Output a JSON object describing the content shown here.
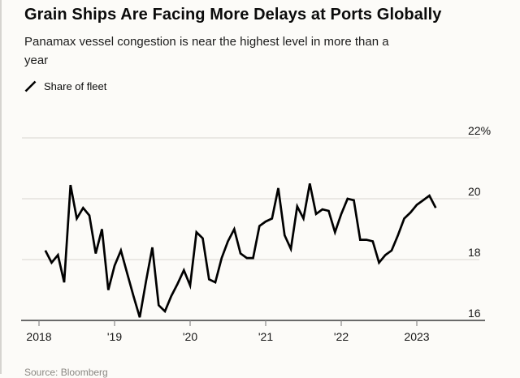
{
  "header": {
    "title": "Grain Ships Are Facing More Delays at Ports Globally",
    "subtitle": "Panamax vessel congestion is near the highest level in more than a year"
  },
  "legend": {
    "icon": "line-swatch",
    "label": "Share of fleet"
  },
  "footer": {
    "source": "Source: Bloomberg"
  },
  "colors": {
    "background": "#fcfbf8",
    "line": "#000000",
    "gridline": "#d9d6d1",
    "axis": "#3a3a3a",
    "tick": "#8a8a8a",
    "text": "#151515",
    "muted": "#8a8782"
  },
  "chart_data": {
    "type": "line",
    "title": "Grain Ships Are Facing More Delays at Ports Globally",
    "subtitle": "Panamax vessel congestion is near the highest level in more than a year",
    "series_name": "Share of fleet",
    "unit": "%",
    "grid": "horizontal",
    "legend_position": "top-left",
    "x_monthly_start": "2018-02",
    "x_monthly_end": "2023-04",
    "ylim": [
      15.5,
      22
    ],
    "y_ticks": [
      {
        "label": "22%",
        "value": 22
      },
      {
        "label": "20",
        "value": 20
      },
      {
        "label": "18",
        "value": 18
      },
      {
        "label": "16",
        "value": 16
      }
    ],
    "x_ticks": [
      {
        "label": "2018",
        "year": 2018
      },
      {
        "label": "'19",
        "year": 2019
      },
      {
        "label": "'20",
        "year": 2020
      },
      {
        "label": "'21",
        "year": 2021
      },
      {
        "label": "'22",
        "year": 2022
      },
      {
        "label": "2023",
        "year": 2023
      }
    ],
    "values": [
      18.3,
      17.9,
      18.15,
      17.25,
      20.45,
      19.35,
      19.7,
      19.45,
      18.2,
      19.0,
      17.0,
      17.8,
      18.3,
      17.55,
      16.8,
      16.1,
      17.3,
      18.4,
      16.5,
      16.3,
      16.8,
      17.2,
      17.65,
      17.15,
      18.9,
      18.7,
      17.35,
      17.25,
      18.05,
      18.6,
      19.0,
      18.2,
      18.05,
      18.05,
      19.1,
      19.25,
      19.35,
      20.35,
      18.8,
      18.35,
      19.75,
      19.35,
      20.5,
      19.5,
      19.65,
      19.6,
      18.9,
      19.5,
      20.0,
      19.95,
      18.65,
      18.65,
      18.6,
      17.9,
      18.15,
      18.3,
      18.8,
      19.35,
      19.55,
      19.8,
      19.95,
      20.1,
      19.7
    ]
  }
}
